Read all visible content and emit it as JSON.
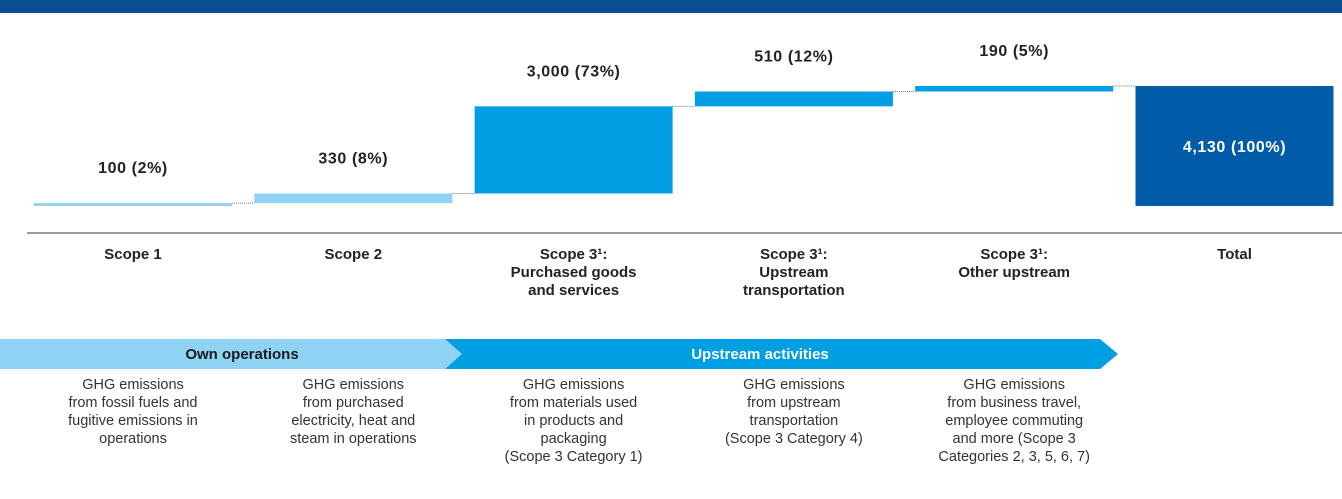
{
  "chart_data": {
    "type": "waterfall",
    "categories": [
      "Scope 1",
      "Scope 2",
      "Scope 3¹:\nPurchased goods\nand services",
      "Scope 3¹:\nUpstream\ntransportation",
      "Scope 3¹:\nOther upstream",
      "Total"
    ],
    "values": [
      100,
      330,
      3000,
      510,
      190,
      4130
    ],
    "value_labels": [
      "100 (2%)",
      "330 (8%)",
      "3,000 (73%)",
      "510 (12%)",
      "190 (5%)",
      "4,130 (100%)"
    ],
    "is_total": [
      false,
      false,
      false,
      false,
      false,
      true
    ],
    "colors": [
      "#8fd3f4",
      "#8fd3f4",
      "#009fe3",
      "#009fe3",
      "#009fe3",
      "#005ca9"
    ],
    "phases": [
      "Own operations",
      "Upstream activities"
    ],
    "descriptions": [
      "GHG emissions\nfrom fossil fuels and\nfugitive emissions in\noperations",
      "GHG emissions\nfrom purchased\nelectricity, heat and\nsteam in operations",
      "GHG emissions\nfrom materials used\nin products and\npackaging\n(Scope 3 Category 1)",
      "GHG emissions\nfrom upstream\ntransportation\n(Scope 3 Category 4)",
      "GHG emissions\nfrom business travel,\nemployee commuting\nand more (Scope 3\nCategories 2, 3, 5, 6, 7)"
    ]
  }
}
